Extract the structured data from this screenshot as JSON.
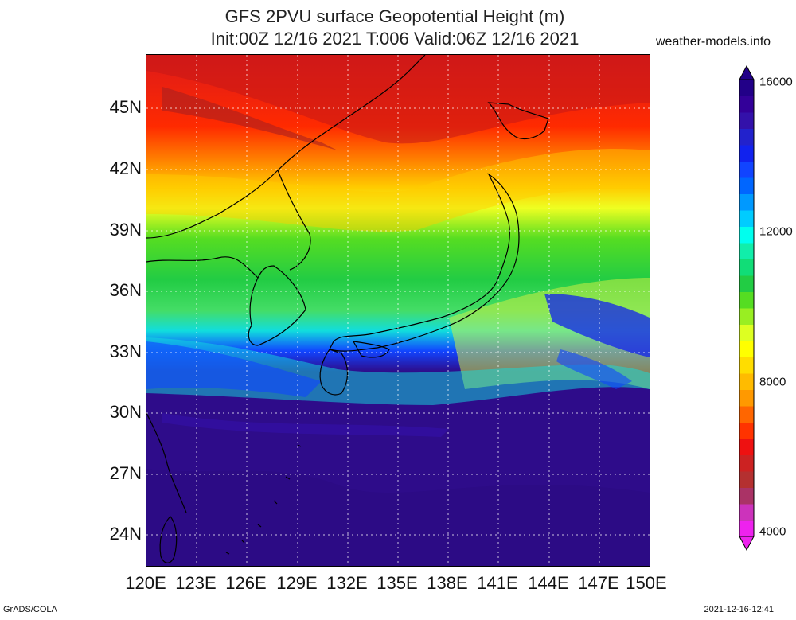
{
  "title_line1": "GFS 2PVU surface Geopotential Height (m)",
  "title_line2": "Init:00Z 12/16 2021 T:006 Valid:06Z 12/16 2021",
  "site": "weather-models.info",
  "x_ticks": [
    "120E",
    "123E",
    "126E",
    "129E",
    "132E",
    "135E",
    "138E",
    "141E",
    "144E",
    "147E",
    "150E"
  ],
  "y_ticks": [
    "45N",
    "42N",
    "39N",
    "36N",
    "33N",
    "30N",
    "27N",
    "24N"
  ],
  "colorbar_labels": [
    "16000",
    "12000",
    "8000",
    "4000"
  ],
  "footer_left": "GrADS/COLA",
  "footer_right": "2021-12-16-12:41",
  "colors": {
    "colorbar": [
      "#ee22ee",
      "#cc33bb",
      "#aa3366",
      "#b43030",
      "#cc2222",
      "#ee1111",
      "#ff3300",
      "#ff6600",
      "#ff9900",
      "#ffbb00",
      "#ffdd00",
      "#ffff00",
      "#ddff22",
      "#99ee22",
      "#55dd22",
      "#22cc44",
      "#11dd77",
      "#11eeaa",
      "#00ffee",
      "#00ccff",
      "#0099ff",
      "#0066ff",
      "#1144ff",
      "#1122ee",
      "#2222cc",
      "#3311aa",
      "#330099",
      "#220088"
    ],
    "background_ocean": "#2e0c8a"
  }
}
